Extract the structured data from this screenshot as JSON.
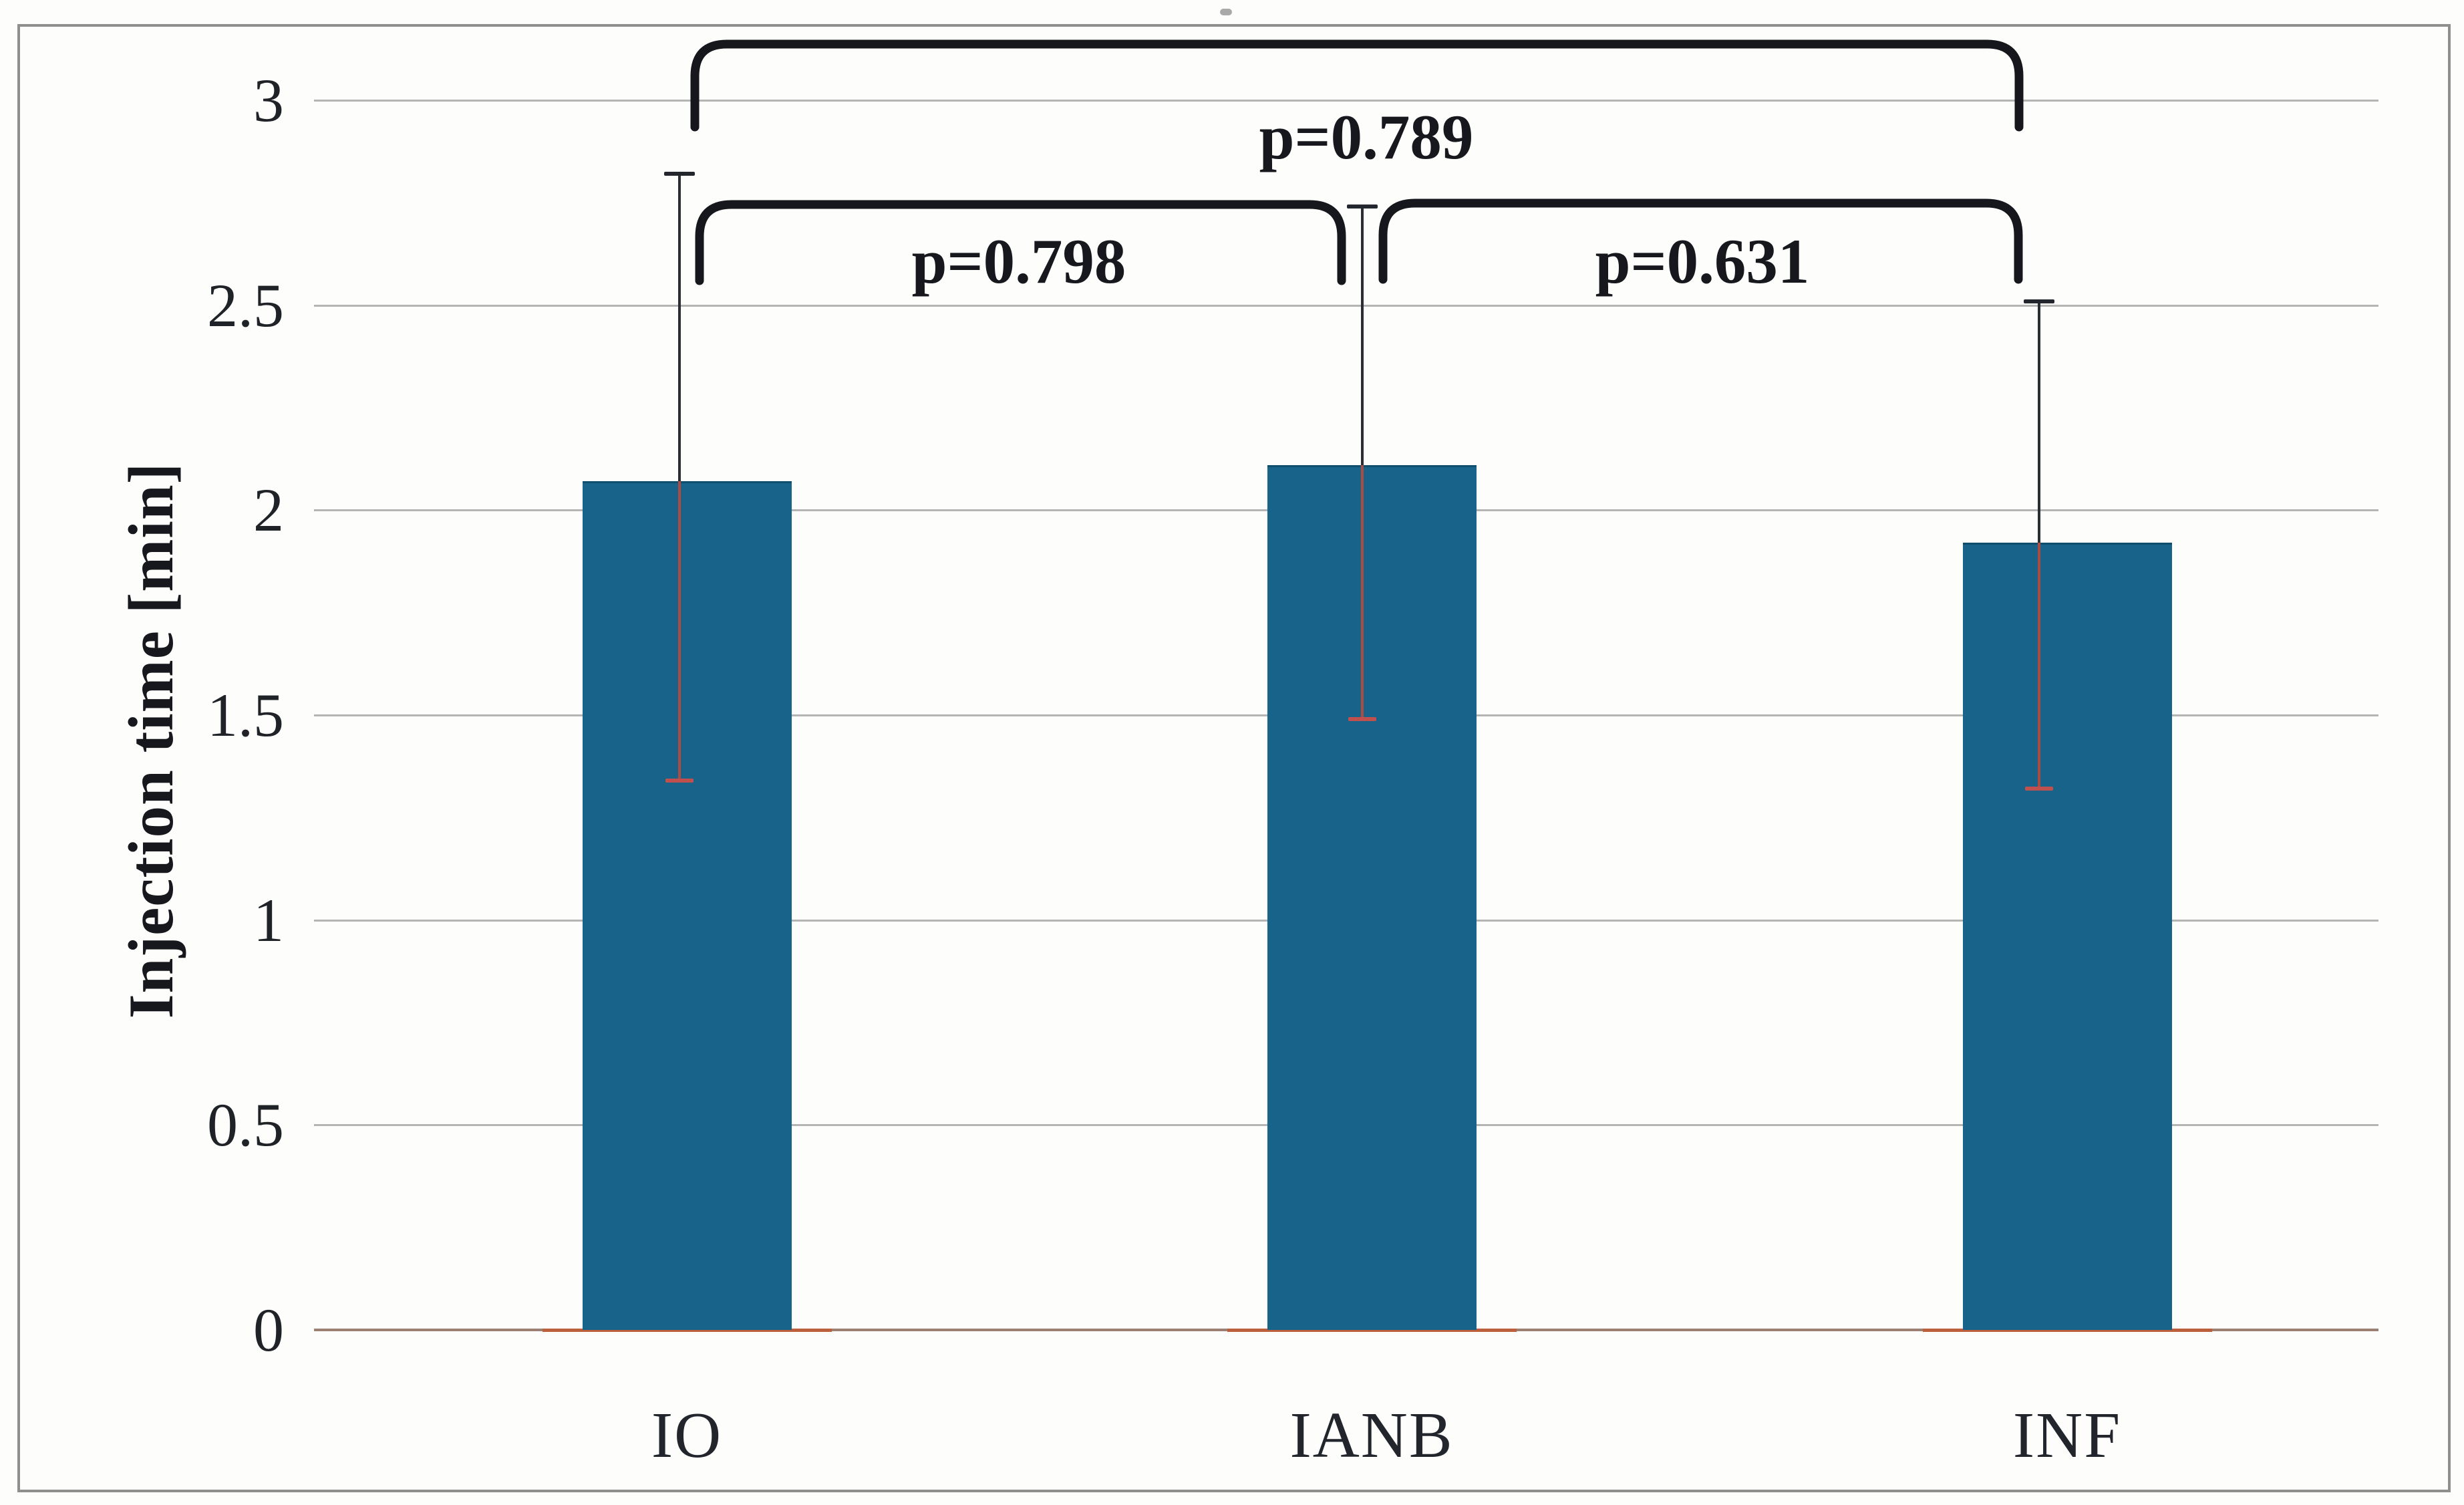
{
  "chart_data": {
    "type": "bar",
    "title": "",
    "xlabel": "",
    "ylabel": "Injection time [min]",
    "categories": [
      "IO",
      "IANB",
      "INF"
    ],
    "values": [
      2.07,
      2.11,
      1.92
    ],
    "error_upper": [
      2.82,
      2.74,
      2.51
    ],
    "error_lower": [
      1.34,
      1.49,
      1.32
    ],
    "ylim": [
      0,
      3
    ],
    "yticks": [
      {
        "value": 0,
        "label": "0"
      },
      {
        "value": 0.5,
        "label": "0.5"
      },
      {
        "value": 1,
        "label": "1"
      },
      {
        "value": 1.5,
        "label": "1.5"
      },
      {
        "value": 2,
        "label": "2"
      },
      {
        "value": 2.5,
        "label": "2.5"
      },
      {
        "value": 3,
        "label": "3"
      }
    ],
    "grid": "horizontal",
    "legend": "none",
    "annotations": [
      {
        "compares": [
          "IO",
          "IANB"
        ],
        "label": "p=0.798"
      },
      {
        "compares": [
          "IANB",
          "INF"
        ],
        "label": "p=0.631"
      },
      {
        "compares": [
          "IO",
          "INF"
        ],
        "label": "p=0.789"
      }
    ]
  },
  "colors": {
    "bar_fill": "#17638a",
    "bar_top_edge": "#0f4e6d",
    "error_upper_line": "#2a2d33",
    "error_upper_cap": "#23262c",
    "error_lower_line": "#ac4b42",
    "error_lower_cap": "#c0504d",
    "gridline": "#b4b4b4",
    "baseline": "#9c8073",
    "baseline_accent": "#bc5f3c",
    "bracket": "#15171c",
    "frame_border": "#8f8f8f",
    "text": "#1f2227"
  }
}
